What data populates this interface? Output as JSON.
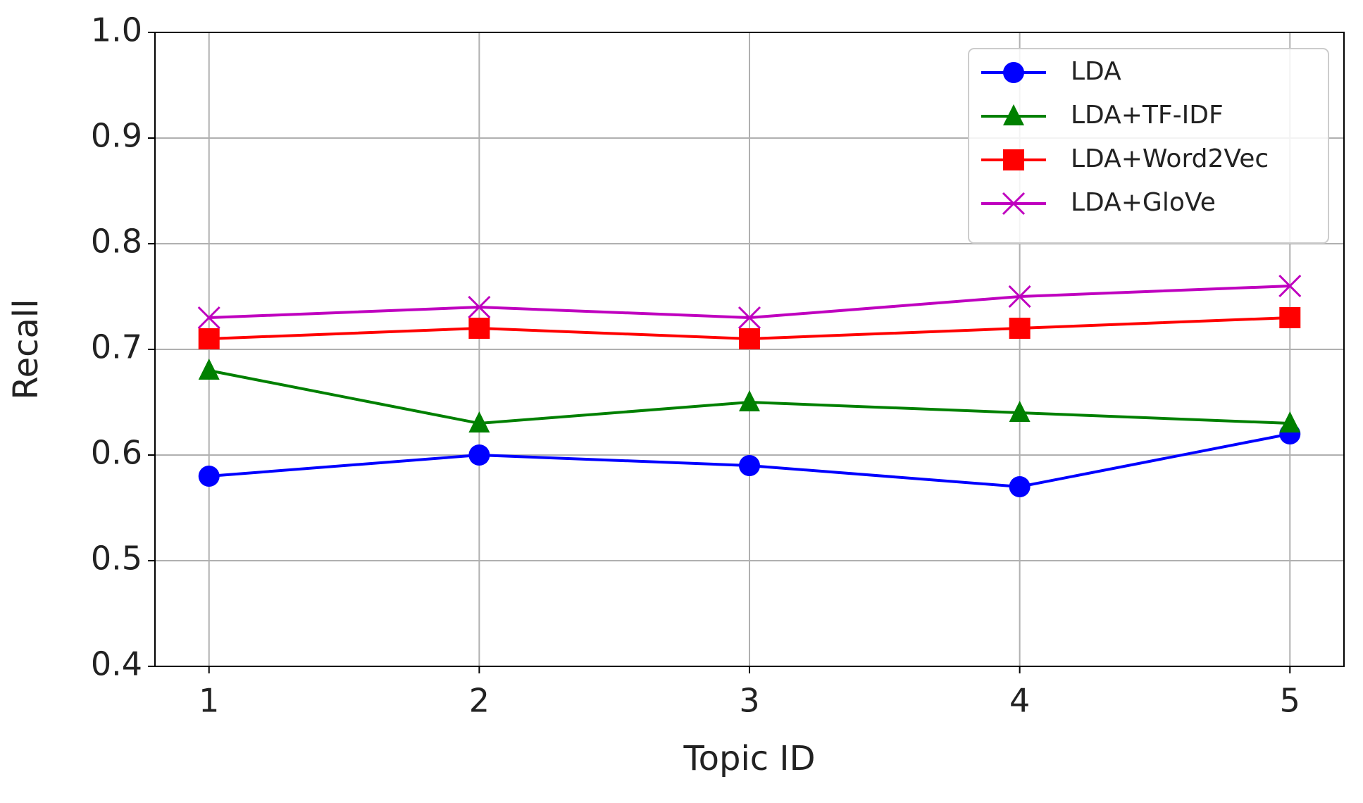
{
  "chart_data": {
    "type": "line",
    "x_label": "Topic ID",
    "y_label": "Recall",
    "x": [
      1,
      2,
      3,
      4,
      5
    ],
    "series": [
      {
        "name": "LDA",
        "color": "#0000ff",
        "marker": "circle",
        "values": [
          0.58,
          0.6,
          0.59,
          0.57,
          0.62
        ]
      },
      {
        "name": "LDA+TF-IDF",
        "color": "#008000",
        "marker": "triangle",
        "values": [
          0.68,
          0.63,
          0.65,
          0.64,
          0.63
        ]
      },
      {
        "name": "LDA+Word2Vec",
        "color": "#ff0000",
        "marker": "square",
        "values": [
          0.71,
          0.72,
          0.71,
          0.72,
          0.73
        ]
      },
      {
        "name": "LDA+GloVe",
        "color": "#bf00bf",
        "marker": "x",
        "values": [
          0.73,
          0.74,
          0.73,
          0.75,
          0.76
        ]
      }
    ],
    "xlim": [
      0.8,
      5.2
    ],
    "xticks": [
      1,
      2,
      3,
      4,
      5
    ],
    "ylim": [
      0.4,
      1.0
    ],
    "yticks": [
      0.4,
      0.5,
      0.6,
      0.7,
      0.8,
      0.9,
      {
        "value": 1.0,
        "label": "1.0"
      }
    ],
    "grid": true,
    "legend": "upper right"
  }
}
